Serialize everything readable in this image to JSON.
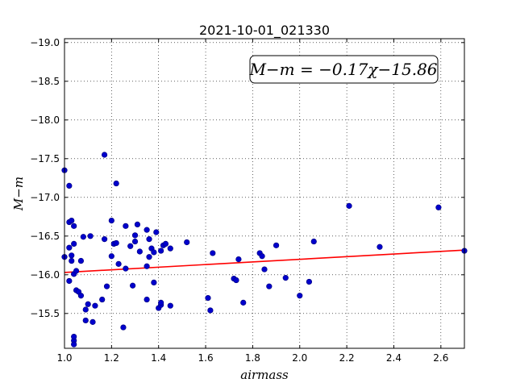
{
  "chart_data": {
    "type": "scatter",
    "title": "2021-10-01_021330",
    "xlabel": "airmass",
    "ylabel": "M−m",
    "xlim": [
      1.0,
      2.7
    ],
    "ylim": [
      -19.05,
      -15.05
    ],
    "invert_y": true,
    "grid": true,
    "x_ticks": [
      1.0,
      1.2,
      1.4,
      1.6,
      1.8,
      2.0,
      2.2,
      2.4,
      2.6
    ],
    "x_tick_labels": [
      "1.0",
      "1.2",
      "1.4",
      "1.6",
      "1.8",
      "2.0",
      "2.2",
      "2.4",
      "2.6"
    ],
    "y_ticks": [
      -15.5,
      -16.0,
      -16.5,
      -17.0,
      -17.5,
      -18.0,
      -18.5,
      -19.0
    ],
    "y_tick_labels": [
      "−15.5",
      "−16.0",
      "−16.5",
      "−17.0",
      "−17.5",
      "−18.0",
      "−18.5",
      "−19.0"
    ],
    "annotation": "M−m = −0.17χ−15.86",
    "fit": {
      "slope": -0.17,
      "intercept": -15.86,
      "color": "#ff0000"
    },
    "point_color": "#0000cc",
    "points": [
      [
        1.0,
        -16.23
      ],
      [
        1.0,
        -17.35
      ],
      [
        1.02,
        -15.92
      ],
      [
        1.02,
        -16.35
      ],
      [
        1.03,
        -16.18
      ],
      [
        1.02,
        -16.68
      ],
      [
        1.03,
        -16.7
      ],
      [
        1.03,
        -16.25
      ],
      [
        1.04,
        -15.15
      ],
      [
        1.04,
        -15.2
      ],
      [
        1.04,
        -16.63
      ],
      [
        1.04,
        -16.01
      ],
      [
        1.04,
        -16.4
      ],
      [
        1.05,
        -16.05
      ],
      [
        1.05,
        -15.8
      ],
      [
        1.06,
        -15.78
      ],
      [
        1.07,
        -15.73
      ],
      [
        1.07,
        -16.18
      ],
      [
        1.08,
        -16.49
      ],
      [
        1.09,
        -15.41
      ],
      [
        1.09,
        -15.55
      ],
      [
        1.1,
        -15.62
      ],
      [
        1.11,
        -16.5
      ],
      [
        1.12,
        -15.39
      ],
      [
        1.13,
        -15.6
      ],
      [
        1.02,
        -17.15
      ],
      [
        1.04,
        -15.1
      ],
      [
        1.16,
        -15.68
      ],
      [
        1.17,
        -16.46
      ],
      [
        1.18,
        -15.85
      ],
      [
        1.17,
        -17.55
      ],
      [
        1.2,
        -16.24
      ],
      [
        1.2,
        -16.7
      ],
      [
        1.21,
        -16.4
      ],
      [
        1.22,
        -16.41
      ],
      [
        1.22,
        -17.18
      ],
      [
        1.23,
        -16.14
      ],
      [
        1.25,
        -15.32
      ],
      [
        1.26,
        -16.08
      ],
      [
        1.26,
        -16.63
      ],
      [
        1.28,
        -16.37
      ],
      [
        1.29,
        -15.86
      ],
      [
        1.3,
        -16.43
      ],
      [
        1.3,
        -16.51
      ],
      [
        1.31,
        -16.65
      ],
      [
        1.32,
        -16.3
      ],
      [
        1.35,
        -15.68
      ],
      [
        1.35,
        -16.11
      ],
      [
        1.35,
        -16.58
      ],
      [
        1.36,
        -16.46
      ],
      [
        1.36,
        -16.23
      ],
      [
        1.37,
        -16.34
      ],
      [
        1.38,
        -15.9
      ],
      [
        1.38,
        -16.29
      ],
      [
        1.39,
        -16.55
      ],
      [
        1.4,
        -15.57
      ],
      [
        1.41,
        -15.61
      ],
      [
        1.41,
        -15.64
      ],
      [
        1.41,
        -16.31
      ],
      [
        1.42,
        -16.38
      ],
      [
        1.43,
        -16.4
      ],
      [
        1.45,
        -15.6
      ],
      [
        1.45,
        -16.34
      ],
      [
        1.52,
        -16.42
      ],
      [
        1.61,
        -15.7
      ],
      [
        1.62,
        -15.54
      ],
      [
        1.63,
        -16.28
      ],
      [
        1.72,
        -15.95
      ],
      [
        1.73,
        -15.93
      ],
      [
        1.74,
        -16.2
      ],
      [
        1.76,
        -15.64
      ],
      [
        1.83,
        -16.28
      ],
      [
        1.84,
        -16.24
      ],
      [
        1.85,
        -16.07
      ],
      [
        1.87,
        -15.85
      ],
      [
        1.9,
        -16.38
      ],
      [
        1.94,
        -15.96
      ],
      [
        2.0,
        -15.73
      ],
      [
        2.04,
        -15.91
      ],
      [
        2.06,
        -16.43
      ],
      [
        2.21,
        -16.89
      ],
      [
        2.34,
        -16.36
      ],
      [
        2.59,
        -16.87
      ],
      [
        2.7,
        -16.31
      ]
    ]
  }
}
